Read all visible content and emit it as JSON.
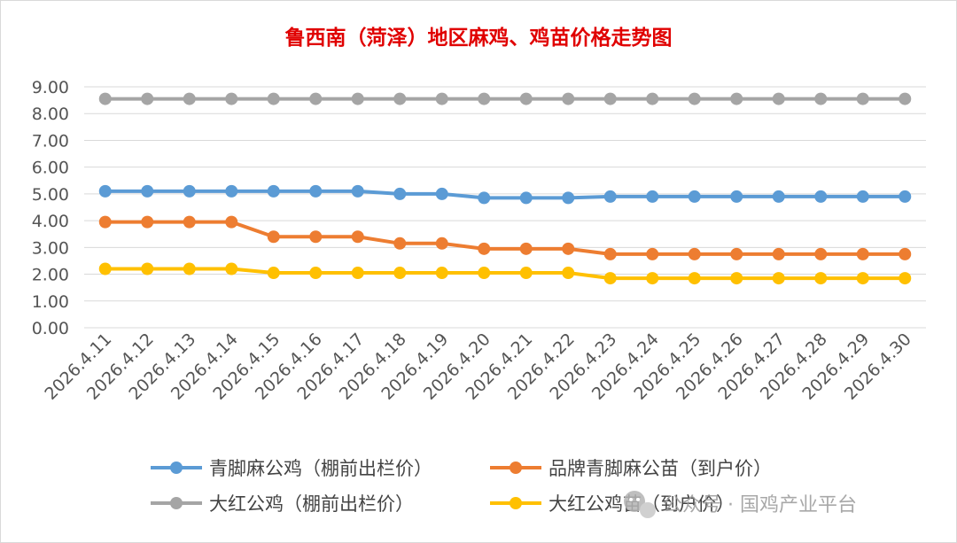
{
  "chart_data": {
    "type": "line",
    "title": "鲁西南（菏泽）地区麻鸡、鸡苗价格走势图",
    "xlabel": "",
    "ylabel": "",
    "ylim": [
      0,
      9
    ],
    "yticks": [
      "0.00",
      "1.00",
      "2.00",
      "3.00",
      "4.00",
      "5.00",
      "6.00",
      "7.00",
      "8.00",
      "9.00"
    ],
    "grid": true,
    "legend_position": "bottom",
    "categories": [
      "2026.4.11",
      "2026.4.12",
      "2026.4.13",
      "2026.4.14",
      "2026.4.15",
      "2026.4.16",
      "2026.4.17",
      "2026.4.18",
      "2026.4.19",
      "2026.4.20",
      "2026.4.21",
      "2026.4.22",
      "2026.4.23",
      "2026.4.24",
      "2026.4.25",
      "2026.4.26",
      "2026.4.27",
      "2026.4.28",
      "2026.4.29",
      "2026.4.30"
    ],
    "series": [
      {
        "name": "青脚麻公鸡（棚前出栏价）",
        "color": "#5b9bd5",
        "values": [
          5.1,
          5.1,
          5.1,
          5.1,
          5.1,
          5.1,
          5.1,
          5.0,
          5.0,
          4.85,
          4.85,
          4.85,
          4.9,
          4.9,
          4.9,
          4.9,
          4.9,
          4.9,
          4.9,
          4.9
        ]
      },
      {
        "name": "品牌青脚麻公苗（到户价）",
        "color": "#ed7d31",
        "values": [
          3.95,
          3.95,
          3.95,
          3.95,
          3.4,
          3.4,
          3.4,
          3.15,
          3.15,
          2.95,
          2.95,
          2.95,
          2.75,
          2.75,
          2.75,
          2.75,
          2.75,
          2.75,
          2.75,
          2.75
        ]
      },
      {
        "name": "大红公鸡（棚前出栏价）",
        "color": "#a5a5a5",
        "values": [
          8.55,
          8.55,
          8.55,
          8.55,
          8.55,
          8.55,
          8.55,
          8.55,
          8.55,
          8.55,
          8.55,
          8.55,
          8.55,
          8.55,
          8.55,
          8.55,
          8.55,
          8.55,
          8.55,
          8.55
        ]
      },
      {
        "name": "大红公鸡苗（到户价）",
        "color": "#ffc000",
        "values": [
          2.2,
          2.2,
          2.2,
          2.2,
          2.05,
          2.05,
          2.05,
          2.05,
          2.05,
          2.05,
          2.05,
          2.05,
          1.85,
          1.85,
          1.85,
          1.85,
          1.85,
          1.85,
          1.85,
          1.85
        ]
      }
    ]
  },
  "watermark": {
    "icon": "wechat-icon",
    "text": "公众号 · 国鸡产业平台"
  }
}
